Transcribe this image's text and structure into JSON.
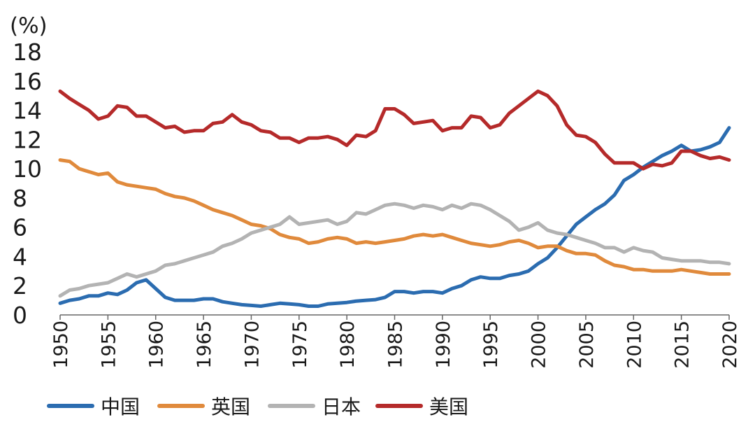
{
  "chart_data": {
    "type": "line",
    "title": "",
    "xlabel": "",
    "ylabel": "(%)",
    "ylim": [
      0,
      18
    ],
    "xlim": [
      1950,
      2020
    ],
    "yticks": [
      "0",
      "2",
      "4",
      "6",
      "8",
      "10",
      "12",
      "14",
      "16",
      "18"
    ],
    "xticks": [
      "1950",
      "1955",
      "1960",
      "1965",
      "1970",
      "1975",
      "1980",
      "1985",
      "1990",
      "1995",
      "2000",
      "2005",
      "2010",
      "2015",
      "2020"
    ],
    "grid": false,
    "legend_position": "bottom",
    "series": [
      {
        "name": "中国",
        "color": "#2b6cb0",
        "x": [
          1950,
          1951,
          1952,
          1953,
          1954,
          1955,
          1956,
          1957,
          1958,
          1959,
          1960,
          1961,
          1962,
          1963,
          1964,
          1965,
          1966,
          1967,
          1968,
          1969,
          1970,
          1971,
          1972,
          1973,
          1974,
          1975,
          1976,
          1977,
          1978,
          1979,
          1980,
          1981,
          1982,
          1983,
          1984,
          1985,
          1986,
          1987,
          1988,
          1989,
          1990,
          1991,
          1992,
          1993,
          1994,
          1995,
          1996,
          1997,
          1998,
          1999,
          2000,
          2001,
          2002,
          2003,
          2004,
          2005,
          2006,
          2007,
          2008,
          2009,
          2010,
          2011,
          2012,
          2013,
          2014,
          2015,
          2016,
          2017,
          2018,
          2019,
          2020
        ],
        "values": [
          0.8,
          1.0,
          1.1,
          1.3,
          1.3,
          1.5,
          1.4,
          1.7,
          2.2,
          2.4,
          1.8,
          1.2,
          1.0,
          1.0,
          1.0,
          1.1,
          1.1,
          0.9,
          0.8,
          0.7,
          0.65,
          0.6,
          0.7,
          0.8,
          0.75,
          0.7,
          0.6,
          0.6,
          0.75,
          0.8,
          0.85,
          0.95,
          1.0,
          1.05,
          1.2,
          1.6,
          1.6,
          1.5,
          1.6,
          1.6,
          1.5,
          1.8,
          2.0,
          2.4,
          2.6,
          2.5,
          2.5,
          2.7,
          2.8,
          3.0,
          3.5,
          3.9,
          4.6,
          5.4,
          6.2,
          6.7,
          7.2,
          7.6,
          8.2,
          9.2,
          9.6,
          10.1,
          10.5,
          10.9,
          11.2,
          11.6,
          11.2,
          11.3,
          11.5,
          11.8,
          12.8
        ]
      },
      {
        "name": "英国",
        "color": "#e08a3c",
        "x": [
          1950,
          1951,
          1952,
          1953,
          1954,
          1955,
          1956,
          1957,
          1958,
          1959,
          1960,
          1961,
          1962,
          1963,
          1964,
          1965,
          1966,
          1967,
          1968,
          1969,
          1970,
          1971,
          1972,
          1973,
          1974,
          1975,
          1976,
          1977,
          1978,
          1979,
          1980,
          1981,
          1982,
          1983,
          1984,
          1985,
          1986,
          1987,
          1988,
          1989,
          1990,
          1991,
          1992,
          1993,
          1994,
          1995,
          1996,
          1997,
          1998,
          1999,
          2000,
          2001,
          2002,
          2003,
          2004,
          2005,
          2006,
          2007,
          2008,
          2009,
          2010,
          2011,
          2012,
          2013,
          2014,
          2015,
          2016,
          2017,
          2018,
          2019,
          2020
        ],
        "values": [
          10.6,
          10.5,
          10.0,
          9.8,
          9.6,
          9.7,
          9.1,
          8.9,
          8.8,
          8.7,
          8.6,
          8.3,
          8.1,
          8.0,
          7.8,
          7.5,
          7.2,
          7.0,
          6.8,
          6.5,
          6.2,
          6.1,
          5.9,
          5.5,
          5.3,
          5.2,
          4.9,
          5.0,
          5.2,
          5.3,
          5.2,
          4.9,
          5.0,
          4.9,
          5.0,
          5.1,
          5.2,
          5.4,
          5.5,
          5.4,
          5.5,
          5.3,
          5.1,
          4.9,
          4.8,
          4.7,
          4.8,
          5.0,
          5.1,
          4.9,
          4.6,
          4.7,
          4.7,
          4.4,
          4.2,
          4.2,
          4.1,
          3.7,
          3.4,
          3.3,
          3.1,
          3.1,
          3.0,
          3.0,
          3.0,
          3.1,
          3.0,
          2.9,
          2.8,
          2.8,
          2.8
        ]
      },
      {
        "name": "日本",
        "color": "#b3b3b3",
        "x": [
          1950,
          1951,
          1952,
          1953,
          1954,
          1955,
          1956,
          1957,
          1958,
          1959,
          1960,
          1961,
          1962,
          1963,
          1964,
          1965,
          1966,
          1967,
          1968,
          1969,
          1970,
          1971,
          1972,
          1973,
          1974,
          1975,
          1976,
          1977,
          1978,
          1979,
          1980,
          1981,
          1982,
          1983,
          1984,
          1985,
          1986,
          1987,
          1988,
          1989,
          1990,
          1991,
          1992,
          1993,
          1994,
          1995,
          1996,
          1997,
          1998,
          1999,
          2000,
          2001,
          2002,
          2003,
          2004,
          2005,
          2006,
          2007,
          2008,
          2009,
          2010,
          2011,
          2012,
          2013,
          2014,
          2015,
          2016,
          2017,
          2018,
          2019,
          2020
        ],
        "values": [
          1.3,
          1.7,
          1.8,
          2.0,
          2.1,
          2.2,
          2.5,
          2.8,
          2.6,
          2.8,
          3.0,
          3.4,
          3.5,
          3.7,
          3.9,
          4.1,
          4.3,
          4.7,
          4.9,
          5.2,
          5.6,
          5.8,
          6.0,
          6.2,
          6.7,
          6.2,
          6.3,
          6.4,
          6.5,
          6.2,
          6.4,
          7.0,
          6.9,
          7.2,
          7.5,
          7.6,
          7.5,
          7.3,
          7.5,
          7.4,
          7.2,
          7.5,
          7.3,
          7.6,
          7.5,
          7.2,
          6.8,
          6.4,
          5.8,
          6.0,
          6.3,
          5.8,
          5.6,
          5.5,
          5.3,
          5.1,
          4.9,
          4.6,
          4.6,
          4.3,
          4.6,
          4.4,
          4.3,
          3.9,
          3.8,
          3.7,
          3.7,
          3.7,
          3.6,
          3.6,
          3.5
        ]
      },
      {
        "name": "美国",
        "color": "#b52a2a",
        "x": [
          1950,
          1951,
          1952,
          1953,
          1954,
          1955,
          1956,
          1957,
          1958,
          1959,
          1960,
          1961,
          1962,
          1963,
          1964,
          1965,
          1966,
          1967,
          1968,
          1969,
          1970,
          1971,
          1972,
          1973,
          1974,
          1975,
          1976,
          1977,
          1978,
          1979,
          1980,
          1981,
          1982,
          1983,
          1984,
          1985,
          1986,
          1987,
          1988,
          1989,
          1990,
          1991,
          1992,
          1993,
          1994,
          1995,
          1996,
          1997,
          1998,
          1999,
          2000,
          2001,
          2002,
          2003,
          2004,
          2005,
          2006,
          2007,
          2008,
          2009,
          2010,
          2011,
          2012,
          2013,
          2014,
          2015,
          2016,
          2017,
          2018,
          2019,
          2020
        ],
        "values": [
          15.3,
          14.8,
          14.4,
          14.0,
          13.4,
          13.6,
          14.3,
          14.2,
          13.6,
          13.6,
          13.2,
          12.8,
          12.9,
          12.5,
          12.6,
          12.6,
          13.1,
          13.2,
          13.7,
          13.2,
          13.0,
          12.6,
          12.5,
          12.1,
          12.1,
          11.8,
          12.1,
          12.1,
          12.2,
          12.0,
          11.6,
          12.3,
          12.2,
          12.6,
          14.1,
          14.1,
          13.7,
          13.1,
          13.2,
          13.3,
          12.6,
          12.8,
          12.8,
          13.6,
          13.5,
          12.8,
          13.0,
          13.8,
          14.3,
          14.8,
          15.3,
          15.0,
          14.3,
          13.0,
          12.3,
          12.2,
          11.8,
          11.0,
          10.4,
          10.4,
          10.4,
          10.0,
          10.3,
          10.2,
          10.4,
          11.2,
          11.2,
          10.9,
          10.7,
          10.8,
          10.6
        ]
      }
    ]
  }
}
